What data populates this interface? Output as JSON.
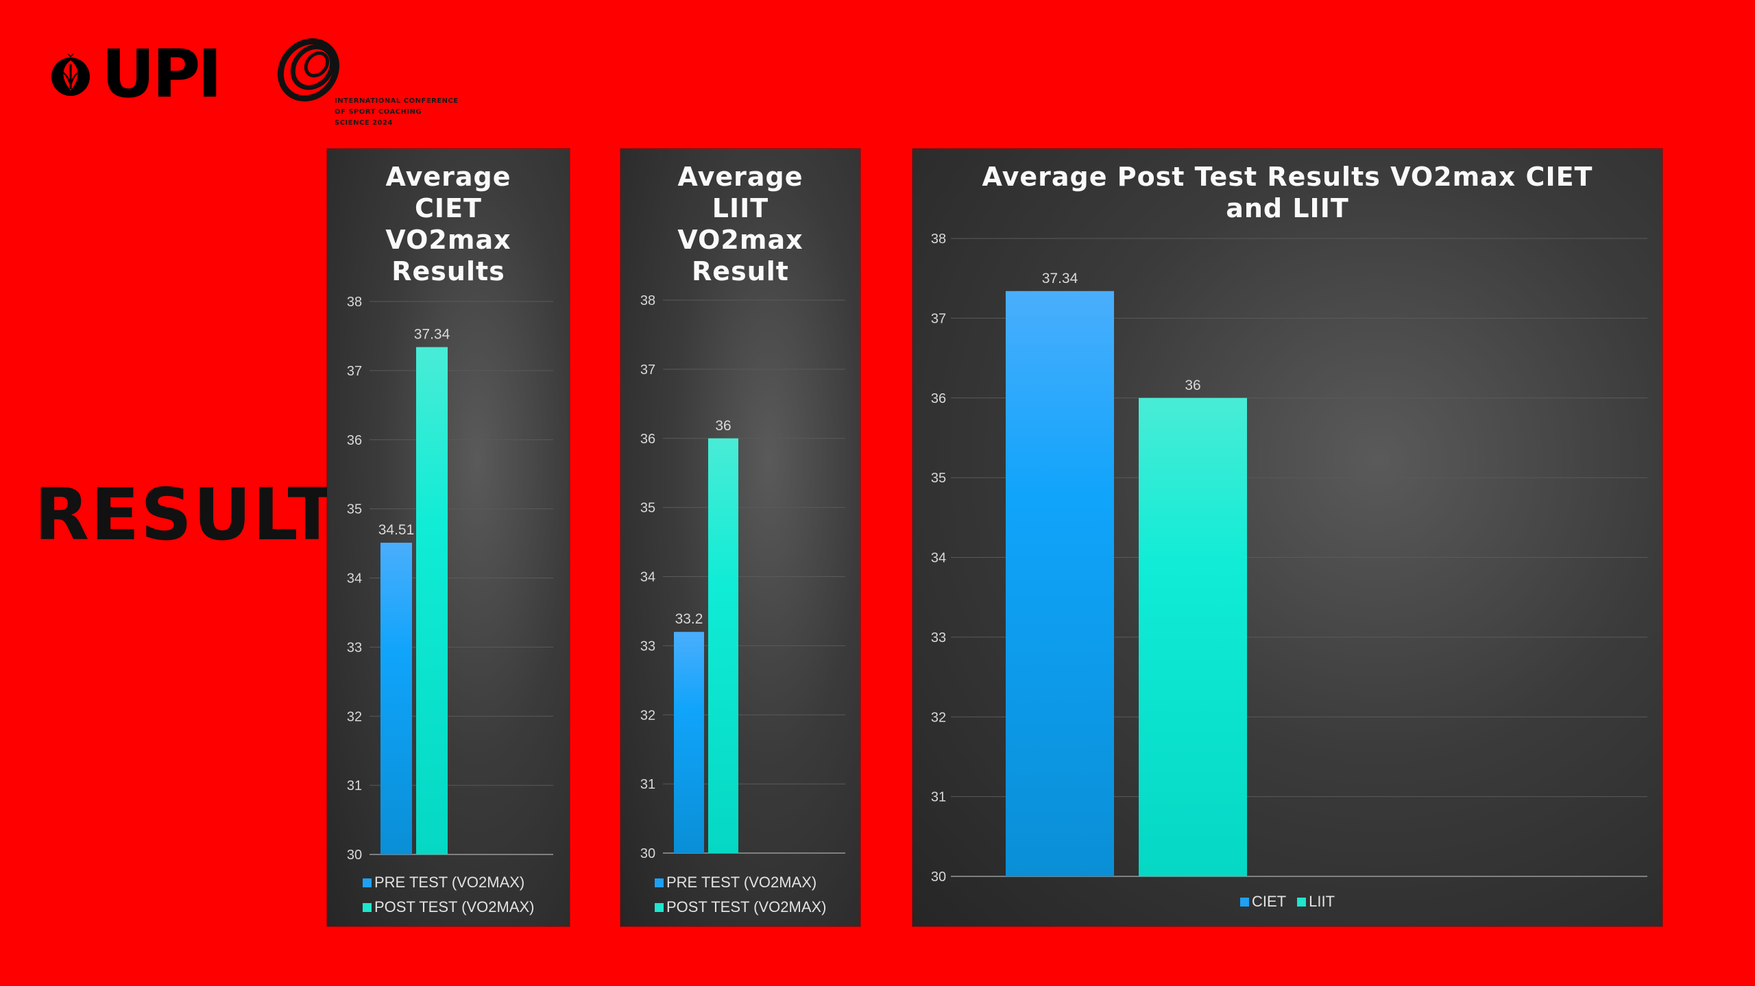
{
  "logos": {
    "university": "UPI",
    "conference": [
      "INTERNATIONAL CONFERENCE",
      "OF SPORT COACHING",
      "SCIENCE 2024"
    ]
  },
  "heading": "RESULT",
  "colors": {
    "background": "#fe0000",
    "pre": "#1fa0f5",
    "post": "#1fe6cd"
  },
  "chart_data": [
    {
      "type": "bar",
      "title": "Average CIET VO2max Results",
      "title_lines": [
        "Average",
        "CIET",
        "VO2max",
        "Results"
      ],
      "series": [
        {
          "name": "PRE TEST (VO2MAX)",
          "values": [
            34.51
          ]
        },
        {
          "name": "POST TEST (VO2MAX)",
          "values": [
            37.34
          ]
        }
      ],
      "data_labels": [
        "34.51",
        "37.34"
      ],
      "ylim": [
        30,
        38
      ],
      "yticks": [
        "30",
        "31",
        "32",
        "33",
        "34",
        "35",
        "36",
        "37",
        "38"
      ],
      "grid": true,
      "legend": "bottom"
    },
    {
      "type": "bar",
      "title": "Average LIIT VO2max Result",
      "title_lines": [
        "Average",
        "LIIT",
        "VO2max",
        "Result"
      ],
      "series": [
        {
          "name": "PRE TEST (VO2MAX)",
          "values": [
            33.2
          ]
        },
        {
          "name": "POST TEST (VO2MAX)",
          "values": [
            36
          ]
        }
      ],
      "data_labels": [
        "33.2",
        "36"
      ],
      "ylim": [
        30,
        38
      ],
      "yticks": [
        "30",
        "31",
        "32",
        "33",
        "34",
        "35",
        "36",
        "37",
        "38"
      ],
      "grid": true,
      "legend": "bottom"
    },
    {
      "type": "bar",
      "title": "Average Post Test Results VO2max CIET and LIIT",
      "title_lines": [
        "Average Post Test Results VO2max CIET",
        "and LIIT"
      ],
      "series": [
        {
          "name": "CIET",
          "values": [
            37.34
          ]
        },
        {
          "name": "LIIT",
          "values": [
            36
          ]
        }
      ],
      "data_labels": [
        "37.34",
        "36"
      ],
      "ylim": [
        30,
        38
      ],
      "yticks": [
        "30",
        "31",
        "32",
        "33",
        "34",
        "35",
        "36",
        "37",
        "38"
      ],
      "grid": true,
      "legend": "bottom"
    }
  ]
}
